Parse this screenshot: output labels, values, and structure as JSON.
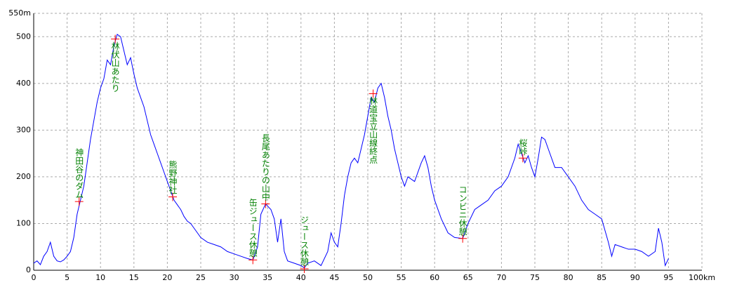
{
  "chart_data": {
    "type": "line",
    "xlim": [
      0,
      100
    ],
    "ylim": [
      0,
      550
    ],
    "xticks": [
      0,
      5,
      10,
      15,
      20,
      25,
      30,
      35,
      40,
      45,
      50,
      55,
      60,
      65,
      70,
      75,
      80,
      85,
      90,
      95,
      {
        "value": 100,
        "label": "100km"
      }
    ],
    "yticks": [
      0,
      100,
      200,
      300,
      400,
      500,
      {
        "value": 550,
        "label": "550m"
      }
    ],
    "grid": true,
    "series": [
      {
        "color": "#0000ff",
        "x": [
          0,
          0.5,
          1,
          1.5,
          2,
          2.5,
          3,
          3.5,
          4,
          4.5,
          5,
          5.5,
          6,
          6.5,
          7,
          7.5,
          8,
          8.5,
          9,
          9.5,
          10,
          10.5,
          11,
          11.5,
          12,
          12.5,
          13,
          13.5,
          14,
          14.5,
          15,
          15.5,
          16,
          16.5,
          17,
          17.5,
          18,
          18.5,
          19,
          19.5,
          20,
          20.5,
          21,
          21.5,
          22,
          22.5,
          23,
          23.5,
          24,
          24.5,
          25,
          26,
          27,
          28,
          29,
          30,
          31,
          32,
          32.8,
          33.5,
          34,
          34.7,
          35.5,
          36,
          36.5,
          37,
          37.5,
          38,
          39,
          40,
          40.5,
          41,
          42,
          43,
          44,
          44.5,
          45,
          45.5,
          46,
          46.5,
          47,
          47.5,
          48,
          48.5,
          49,
          49.5,
          50,
          50.5,
          51,
          51.5,
          52,
          52.5,
          53,
          53.5,
          54,
          54.5,
          55,
          55.5,
          56,
          57,
          58,
          58.5,
          59,
          59.5,
          60,
          61,
          62,
          63,
          64.2,
          65,
          66,
          67,
          68,
          69,
          70,
          71,
          72,
          72.5,
          73,
          73.5,
          74,
          74.5,
          75,
          75.5,
          76,
          76.5,
          77,
          78,
          79,
          80,
          81,
          82,
          83,
          84,
          85,
          86,
          86.5,
          87,
          88,
          89,
          90,
          91,
          92,
          93,
          93.5,
          94,
          94.5,
          95
        ],
        "values": [
          15,
          20,
          12,
          30,
          40,
          60,
          30,
          20,
          18,
          22,
          30,
          40,
          70,
          120,
          150,
          180,
          230,
          280,
          320,
          360,
          390,
          410,
          450,
          440,
          480,
          505,
          500,
          470,
          440,
          455,
          420,
          390,
          370,
          350,
          320,
          290,
          270,
          250,
          230,
          210,
          190,
          170,
          150,
          140,
          130,
          115,
          105,
          100,
          90,
          80,
          70,
          60,
          55,
          50,
          40,
          35,
          30,
          25,
          22,
          50,
          120,
          142,
          130,
          110,
          60,
          110,
          40,
          20,
          15,
          10,
          5,
          15,
          20,
          10,
          40,
          80,
          60,
          50,
          100,
          160,
          200,
          230,
          240,
          230,
          260,
          290,
          330,
          370,
          360,
          390,
          400,
          370,
          330,
          300,
          260,
          230,
          200,
          180,
          200,
          190,
          230,
          245,
          220,
          180,
          150,
          110,
          80,
          70,
          68,
          100,
          130,
          140,
          150,
          170,
          180,
          200,
          240,
          270,
          250,
          230,
          245,
          220,
          200,
          240,
          285,
          280,
          260,
          220,
          220,
          200,
          180,
          150,
          130,
          120,
          110,
          60,
          30,
          55,
          50,
          45,
          45,
          40,
          30,
          40,
          90,
          60,
          10,
          25
        ]
      }
    ],
    "annotations": [
      {
        "label": "神田谷のダム",
        "x": 6.8,
        "y": 147
      },
      {
        "label": "林伏山あたり",
        "x": 12.2,
        "y": 495
      },
      {
        "label": "熊野神社",
        "x": 20.8,
        "y": 157
      },
      {
        "label": "缶ジュース休憩",
        "x": 32.8,
        "y": 22
      },
      {
        "label": "長尾あたりの山中",
        "x": 34.7,
        "y": 142
      },
      {
        "label": "ジュース休憩",
        "x": 40.5,
        "y": 3
      },
      {
        "label": "林道宝立山線終点",
        "x": 50.8,
        "y": 378
      },
      {
        "label": "コンビニ休憩",
        "x": 64.2,
        "y": 68
      },
      {
        "label": "桜峠",
        "x": 73.2,
        "y": 240
      }
    ]
  }
}
